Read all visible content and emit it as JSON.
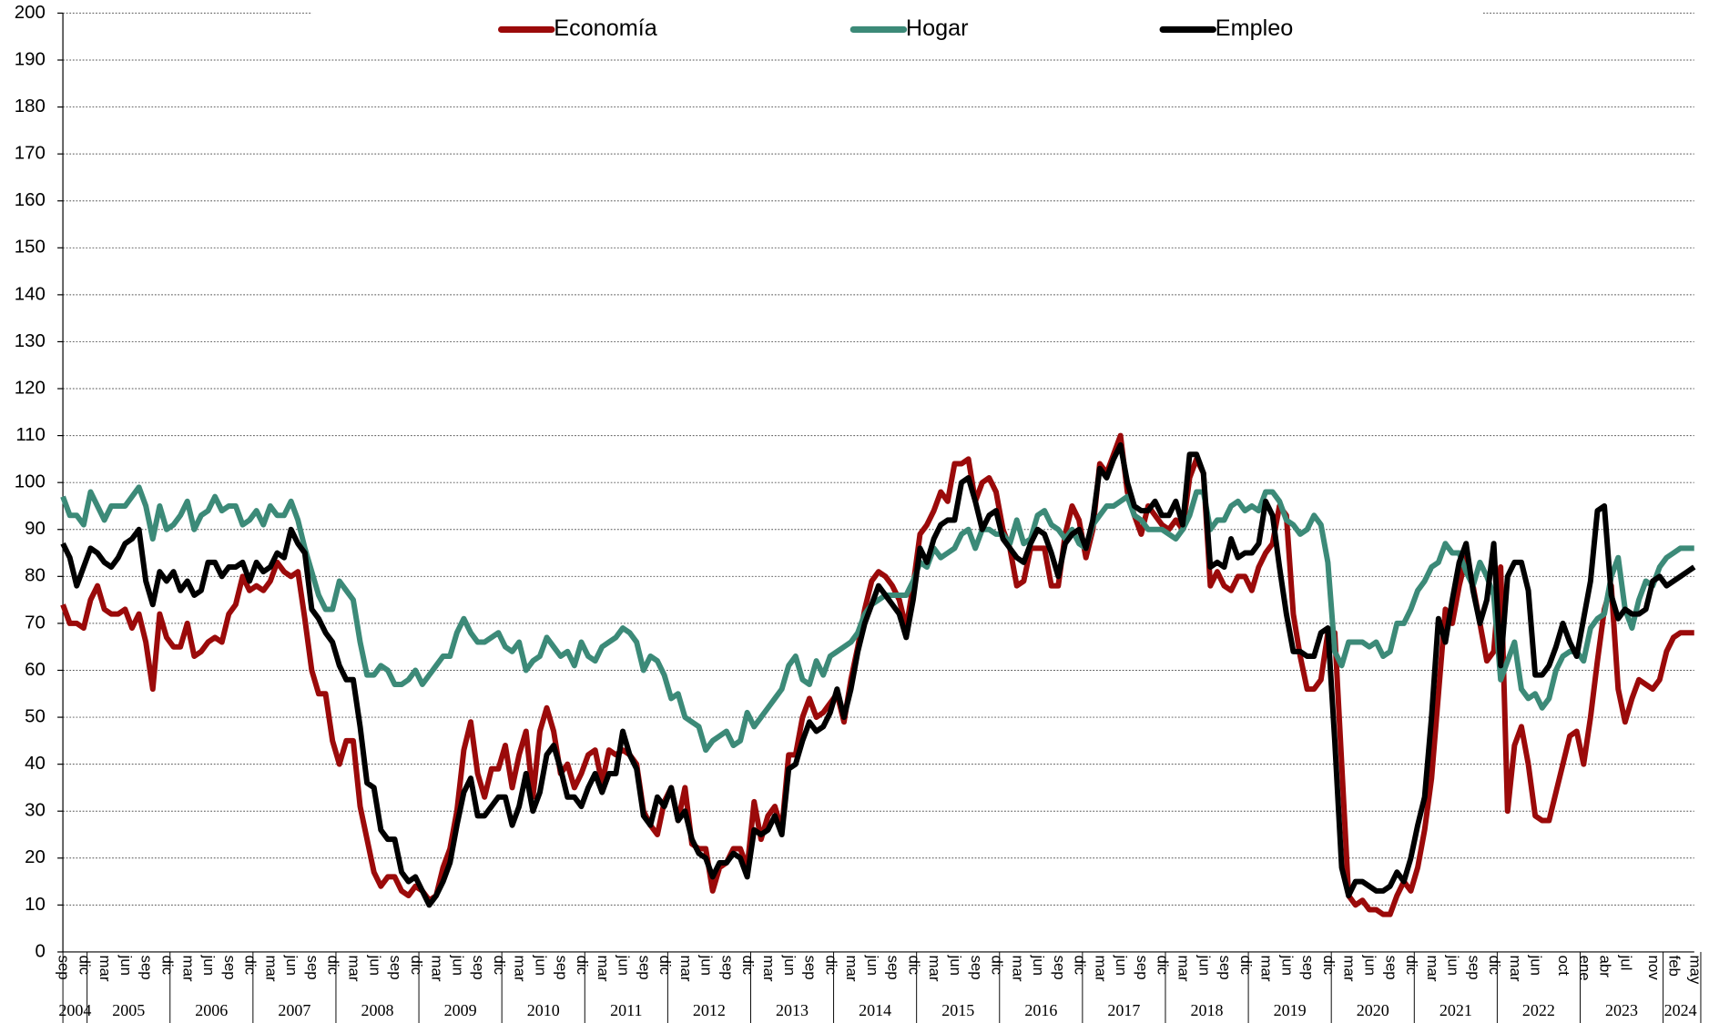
{
  "chart_data": {
    "type": "line",
    "categories": [
      "sep",
      null,
      null,
      "dic",
      null,
      null,
      "mar",
      null,
      null,
      "jun",
      null,
      null,
      "sep",
      null,
      null,
      "dic",
      null,
      null,
      "mar",
      null,
      null,
      "jun",
      null,
      null,
      "sep",
      null,
      null,
      "dic",
      null,
      null,
      "mar",
      null,
      null,
      "jun",
      null,
      null,
      "sep",
      null,
      null,
      "dic",
      null,
      null,
      "mar",
      null,
      null,
      "jun",
      null,
      null,
      "sep",
      null,
      null,
      "dic",
      null,
      null,
      "mar",
      null,
      null,
      "jun",
      null,
      null,
      "sep",
      null,
      null,
      "dic",
      null,
      null,
      "mar",
      null,
      null,
      "jun",
      null,
      null,
      "sep",
      null,
      null,
      "dic",
      null,
      null,
      "mar",
      null,
      null,
      "jun",
      null,
      null,
      "sep",
      null,
      null,
      "dic",
      null,
      null,
      "mar",
      null,
      null,
      "jun",
      null,
      null,
      "sep",
      null,
      null,
      "dic",
      null,
      null,
      "mar",
      null,
      null,
      "jun",
      null,
      null,
      "sep",
      null,
      null,
      "dic",
      null,
      null,
      "mar",
      null,
      null,
      "jun",
      null,
      null,
      "sep",
      null,
      null,
      "dic",
      null,
      null,
      "mar",
      null,
      null,
      "jun",
      null,
      null,
      "sep",
      null,
      null,
      "dic",
      null,
      null,
      "mar",
      null,
      null,
      "jun",
      null,
      null,
      "sep",
      null,
      null,
      "dic",
      null,
      null,
      "mar",
      null,
      null,
      "jun",
      null,
      null,
      "sep",
      null,
      null,
      "dic",
      null,
      null,
      "mar",
      null,
      null,
      "jun",
      null,
      null,
      "sep",
      null,
      null,
      "dic",
      null,
      null,
      "mar",
      null,
      null,
      "jun",
      null,
      null,
      "sep",
      null,
      null,
      "dic",
      null,
      null,
      "mar",
      null,
      null,
      "jun",
      null,
      null,
      "sep",
      null,
      null,
      "dic",
      null,
      null,
      "mar",
      null,
      null,
      "jun",
      null,
      null,
      "sep",
      null,
      null,
      "dic",
      null,
      null,
      "mar",
      null,
      null,
      "jun",
      null,
      null,
      null,
      "oct",
      null,
      null,
      "ene",
      null,
      null,
      "abr",
      null,
      null,
      "jul",
      null,
      null,
      null,
      "nov",
      null,
      null,
      "feb",
      null,
      null,
      "may"
    ],
    "x_groups": [
      {
        "label": "2004",
        "span": 4
      },
      {
        "label": "2005",
        "span": 12
      },
      {
        "label": "2006",
        "span": 12
      },
      {
        "label": "2007",
        "span": 12
      },
      {
        "label": "2008",
        "span": 12
      },
      {
        "label": "2009",
        "span": 12
      },
      {
        "label": "2010",
        "span": 12
      },
      {
        "label": "2011",
        "span": 12
      },
      {
        "label": "2012",
        "span": 12
      },
      {
        "label": "2013",
        "span": 12
      },
      {
        "label": "2014",
        "span": 12
      },
      {
        "label": "2015",
        "span": 12
      },
      {
        "label": "2016",
        "span": 12
      },
      {
        "label": "2017",
        "span": 12
      },
      {
        "label": "2018",
        "span": 12
      },
      {
        "label": "2019",
        "span": 12
      },
      {
        "label": "2020",
        "span": 12
      },
      {
        "label": "2021",
        "span": 12
      },
      {
        "label": "2022",
        "span": 12
      },
      {
        "label": "2023",
        "span": 12
      },
      {
        "label": "2024",
        "span": 5
      }
    ],
    "series": [
      {
        "name": "Economía",
        "color": "#9b0a0a",
        "values": [
          74,
          70,
          70,
          69,
          75,
          78,
          73,
          72,
          72,
          73,
          69,
          72,
          66,
          56,
          72,
          67,
          65,
          65,
          70,
          63,
          64,
          66,
          67,
          66,
          72,
          74,
          80,
          77,
          78,
          77,
          79,
          83,
          81,
          80,
          81,
          71,
          60,
          55,
          55,
          45,
          40,
          45,
          45,
          31,
          24,
          17,
          14,
          16,
          16,
          13,
          12,
          14,
          13,
          11,
          12,
          18,
          22,
          30,
          43,
          49,
          38,
          33,
          39,
          39,
          44,
          35,
          42,
          47,
          33,
          47,
          52,
          47,
          38,
          40,
          35,
          38,
          42,
          43,
          36,
          43,
          42,
          43,
          42,
          40,
          30,
          27,
          25,
          32,
          35,
          28,
          35,
          23,
          22,
          22,
          13,
          18,
          19,
          22,
          22,
          18,
          32,
          24,
          29,
          31,
          26,
          42,
          42,
          50,
          54,
          50,
          51,
          53,
          55,
          49,
          58,
          65,
          73,
          79,
          81,
          80,
          78,
          75,
          69,
          78,
          89,
          91,
          94,
          98,
          96,
          104,
          104,
          105,
          96,
          100,
          101,
          98,
          90,
          86,
          78,
          79,
          86,
          86,
          86,
          78,
          78,
          89,
          95,
          92,
          84,
          90,
          104,
          102,
          106,
          110,
          98,
          93,
          89,
          95,
          93,
          91,
          90,
          92,
          90,
          101,
          105,
          102,
          78,
          81,
          78,
          77,
          80,
          80,
          77,
          82,
          85,
          87,
          95,
          93,
          72,
          63,
          56,
          56,
          58,
          68,
          68,
          40,
          12,
          10,
          11,
          9,
          9,
          8,
          8,
          12,
          15,
          13,
          18,
          26,
          37,
          55,
          73,
          70,
          78,
          84,
          78,
          70,
          62,
          64,
          82,
          30,
          44,
          48,
          40,
          29,
          28,
          28,
          34,
          40,
          46,
          47,
          40,
          50,
          62,
          73,
          78,
          56,
          49,
          54,
          58,
          57,
          56,
          58,
          64,
          67,
          68,
          68,
          68
        ]
      },
      {
        "name": "Hogar",
        "color": "#3c8a78",
        "values": [
          97,
          93,
          93,
          91,
          98,
          95,
          92,
          95,
          95,
          95,
          97,
          99,
          95,
          88,
          95,
          90,
          91,
          93,
          96,
          90,
          93,
          94,
          97,
          94,
          95,
          95,
          91,
          92,
          94,
          91,
          95,
          93,
          93,
          96,
          92,
          86,
          81,
          76,
          73,
          73,
          79,
          77,
          75,
          66,
          59,
          59,
          61,
          60,
          57,
          57,
          58,
          60,
          57,
          59,
          61,
          63,
          63,
          68,
          71,
          68,
          66,
          66,
          67,
          68,
          65,
          64,
          66,
          60,
          62,
          63,
          67,
          65,
          63,
          64,
          61,
          66,
          63,
          62,
          65,
          66,
          67,
          69,
          68,
          66,
          60,
          63,
          62,
          59,
          54,
          55,
          50,
          49,
          48,
          43,
          45,
          46,
          47,
          44,
          45,
          51,
          48,
          50,
          52,
          54,
          56,
          61,
          63,
          58,
          57,
          62,
          59,
          63,
          64,
          65,
          66,
          68,
          72,
          74,
          75,
          76,
          76,
          76,
          76,
          79,
          83,
          82,
          86,
          84,
          85,
          86,
          89,
          90,
          86,
          90,
          90,
          89,
          89,
          87,
          92,
          87,
          88,
          93,
          94,
          91,
          90,
          88,
          90,
          87,
          86,
          91,
          93,
          95,
          95,
          96,
          97,
          93,
          92,
          90,
          90,
          90,
          89,
          88,
          90,
          93,
          98,
          98,
          90,
          92,
          92,
          95,
          96,
          94,
          95,
          94,
          98,
          98,
          96,
          92,
          91,
          89,
          90,
          93,
          91,
          83,
          64,
          61,
          66,
          66,
          66,
          65,
          66,
          63,
          64,
          70,
          70,
          73,
          77,
          79,
          82,
          83,
          87,
          85,
          85,
          81,
          78,
          83,
          80,
          76,
          58,
          62,
          66,
          56,
          54,
          55,
          52,
          54,
          60,
          63,
          64,
          64,
          62,
          69,
          71,
          72,
          80,
          84,
          73,
          69,
          75,
          79,
          78,
          82,
          84,
          85,
          86,
          86,
          86
        ]
      },
      {
        "name": "Empleo",
        "color": "#000000",
        "values": [
          87,
          84,
          78,
          82,
          86,
          85,
          83,
          82,
          84,
          87,
          88,
          90,
          79,
          74,
          81,
          79,
          81,
          77,
          79,
          76,
          77,
          83,
          83,
          80,
          82,
          82,
          83,
          79,
          83,
          81,
          82,
          85,
          84,
          90,
          87,
          85,
          73,
          71,
          68,
          66,
          61,
          58,
          58,
          48,
          36,
          35,
          26,
          24,
          24,
          17,
          15,
          16,
          13,
          10,
          12,
          15,
          19,
          27,
          34,
          37,
          29,
          29,
          31,
          33,
          33,
          27,
          31,
          38,
          30,
          34,
          42,
          44,
          39,
          33,
          33,
          31,
          35,
          38,
          34,
          38,
          38,
          47,
          42,
          39,
          29,
          27,
          33,
          31,
          35,
          28,
          30,
          24,
          21,
          20,
          16,
          19,
          19,
          21,
          20,
          16,
          26,
          25,
          26,
          29,
          25,
          39,
          40,
          45,
          49,
          47,
          48,
          51,
          56,
          50,
          56,
          64,
          70,
          74,
          78,
          76,
          74,
          72,
          67,
          75,
          86,
          83,
          88,
          91,
          92,
          92,
          100,
          101,
          96,
          90,
          93,
          94,
          88,
          86,
          84,
          83,
          87,
          90,
          89,
          85,
          80,
          87,
          89,
          90,
          86,
          92,
          103,
          101,
          105,
          108,
          100,
          95,
          94,
          94,
          96,
          93,
          93,
          96,
          91,
          106,
          106,
          102,
          82,
          83,
          82,
          88,
          84,
          85,
          85,
          87,
          96,
          93,
          82,
          72,
          64,
          64,
          63,
          63,
          68,
          69,
          45,
          18,
          12,
          15,
          15,
          14,
          13,
          13,
          14,
          17,
          15,
          20,
          27,
          33,
          50,
          71,
          66,
          75,
          83,
          87,
          77,
          70,
          75,
          87,
          61,
          80,
          83,
          83,
          77,
          59,
          59,
          61,
          65,
          70,
          66,
          63,
          71,
          79,
          94,
          95,
          76,
          71,
          73,
          72,
          72,
          73,
          79,
          80,
          78,
          79,
          80,
          81,
          82
        ]
      }
    ],
    "ylim": [
      0,
      200
    ],
    "yticks": [
      0,
      10,
      20,
      30,
      40,
      50,
      60,
      70,
      80,
      90,
      100,
      110,
      120,
      130,
      140,
      150,
      160,
      170,
      180,
      190,
      200
    ],
    "grid": true,
    "legend": "top"
  }
}
